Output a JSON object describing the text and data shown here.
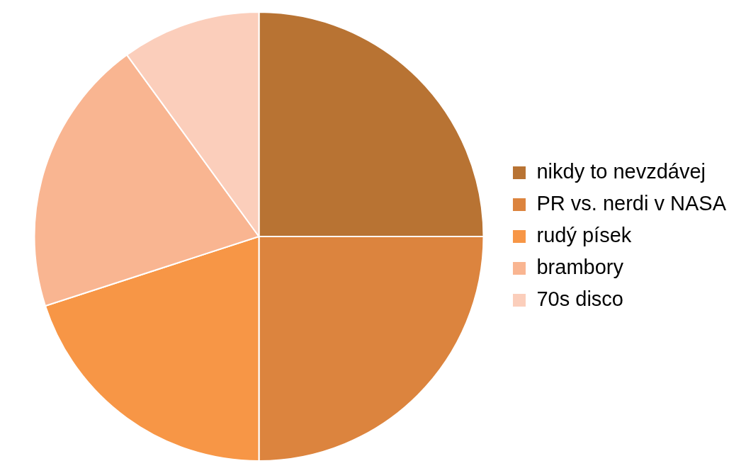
{
  "chart_data": {
    "type": "pie",
    "categories": [
      "nikdy to nevzdávej",
      "PR vs. nerdi v NASA",
      "rudý písek",
      "brambory",
      "70s disco"
    ],
    "values": [
      25,
      25,
      20,
      20,
      10
    ],
    "colors": [
      "#b87333",
      "#dc843e",
      "#f79646",
      "#f9b591",
      "#fbcebb"
    ],
    "legend": "right"
  }
}
